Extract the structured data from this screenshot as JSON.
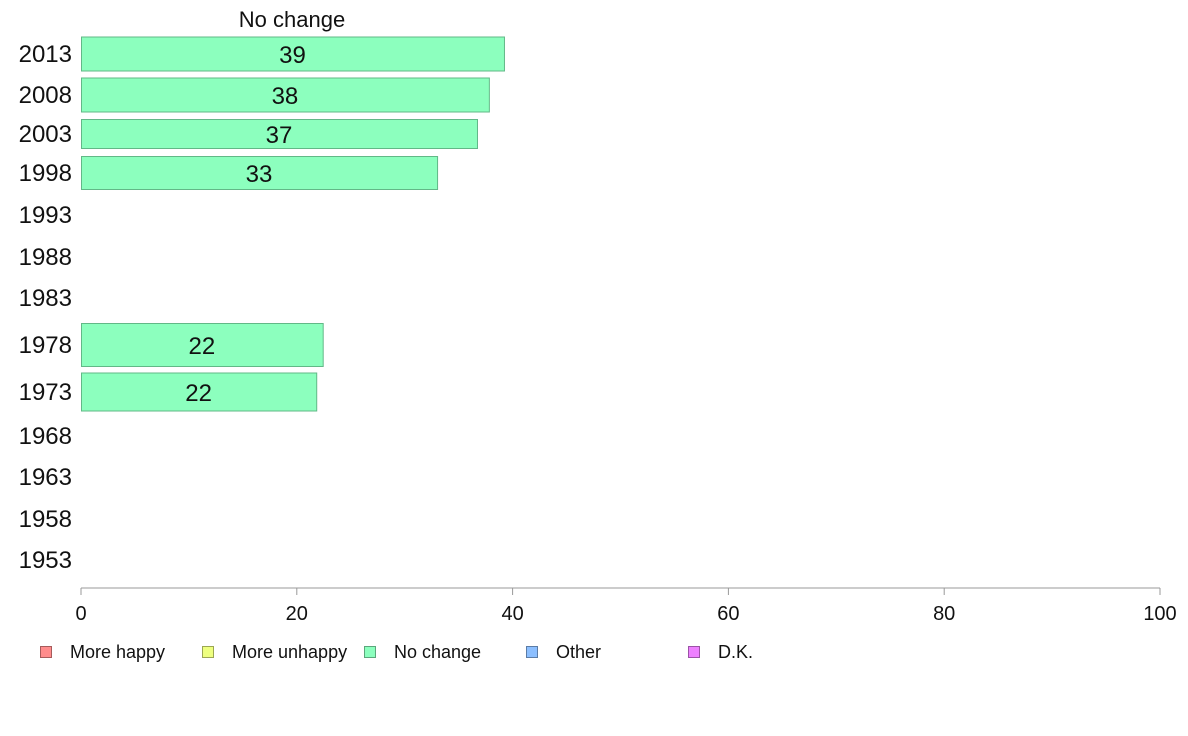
{
  "chart_data": {
    "type": "bar",
    "orientation": "horizontal",
    "title": "No change",
    "xlabel": "",
    "ylabel": "",
    "xlim": [
      0,
      100
    ],
    "x_ticks": [
      "0",
      "20",
      "40",
      "60",
      "80",
      "100"
    ],
    "categories": [
      "2013",
      "2008",
      "2003",
      "1998",
      "1993",
      "1988",
      "1983",
      "1978",
      "1973",
      "1968",
      "1963",
      "1958",
      "1953"
    ],
    "series": [
      {
        "name": "No change",
        "values": [
          39.2,
          37.8,
          36.7,
          33.0,
          null,
          null,
          null,
          22.4,
          21.8,
          null,
          null,
          null,
          null
        ],
        "labels": [
          "39",
          "38",
          "37",
          "33",
          "",
          "",
          "",
          "22",
          "22",
          "",
          "",
          "",
          ""
        ],
        "color": "#8cffbe"
      }
    ],
    "legend": [
      {
        "label": "More happy",
        "color": "#ff8c8c"
      },
      {
        "label": "More unhappy",
        "color": "#eeff80"
      },
      {
        "label": "No change",
        "color": "#8cffbe"
      },
      {
        "label": "Other",
        "color": "#8cbfff"
      },
      {
        "label": "D.K.",
        "color": "#ee80ff"
      }
    ],
    "legend_position": "bottom",
    "grid": false
  }
}
